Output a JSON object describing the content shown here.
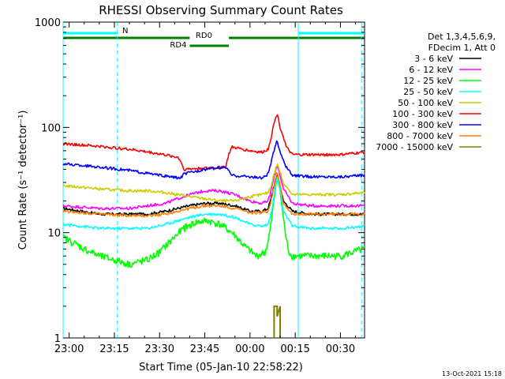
{
  "chart_data": {
    "type": "line",
    "title": "RHESSI Observing Summary Count Rates",
    "ylabel": "Count Rate (s⁻¹ detector⁻¹)",
    "xlabel": "Start Time (05-Jan-10 22:58:22)",
    "footer": "13-Oct-2021 15:18",
    "y_scale": "log",
    "ylim": [
      1,
      1000
    ],
    "xlim": [
      "22:58",
      "00:38"
    ],
    "x_ticks": [
      "23:00",
      "23:15",
      "23:30",
      "23:45",
      "00:00",
      "00:15",
      "00:30"
    ],
    "y_ticks": [
      "1",
      "10",
      "100",
      "1000"
    ],
    "legend": {
      "position": "right",
      "header": [
        "Det 1,3,4,5,6,9,",
        "FDecim 1, Att 0"
      ]
    },
    "series": [
      {
        "name": "3 - 6 keV",
        "color": "#000000",
        "x": [
          "22:58",
          "23:10",
          "23:20",
          "23:26",
          "23:32",
          "23:36",
          "23:40",
          "23:45",
          "23:50",
          "23:55",
          "00:00",
          "00:04",
          "00:06",
          "00:07",
          "00:08",
          "00:09",
          "00:11",
          "00:14",
          "00:20",
          "00:30",
          "00:38"
        ],
        "values": [
          17,
          15,
          15,
          15,
          16,
          17,
          18,
          19,
          19,
          18,
          16,
          16,
          17,
          21,
          28,
          36,
          20,
          16,
          15,
          15,
          15
        ]
      },
      {
        "name": "6 - 12 keV",
        "color": "#ff00ff",
        "x": [
          "22:58",
          "23:10",
          "23:20",
          "23:26",
          "23:32",
          "23:36",
          "23:40",
          "23:45",
          "23:50",
          "23:55",
          "00:00",
          "00:04",
          "00:06",
          "00:07",
          "00:08",
          "00:09",
          "00:11",
          "00:14",
          "00:20",
          "00:30",
          "00:38"
        ],
        "values": [
          18,
          17,
          17,
          18,
          19,
          21,
          23,
          25,
          25,
          23,
          20,
          19,
          20,
          25,
          34,
          44,
          26,
          19,
          18,
          18,
          18
        ]
      },
      {
        "name": "12 - 25 keV",
        "color": "#00ff00",
        "x": [
          "22:58",
          "23:05",
          "23:10",
          "23:20",
          "23:26",
          "23:30",
          "23:34",
          "23:38",
          "23:42",
          "23:46",
          "23:50",
          "23:54",
          "23:58",
          "00:02",
          "00:05",
          "00:06",
          "00:07",
          "00:08",
          "00:09",
          "00:10",
          "00:11",
          "00:12",
          "00:13",
          "00:14",
          "00:20",
          "00:30",
          "00:38"
        ],
        "values": [
          9,
          7,
          6,
          5,
          5.5,
          6.5,
          8.5,
          11,
          12.5,
          13,
          12,
          10,
          7.5,
          6,
          6.5,
          8,
          12,
          20,
          34,
          24,
          14,
          8.5,
          6.5,
          6,
          6,
          6,
          7
        ]
      },
      {
        "name": "25 - 50 keV",
        "color": "#00ffff",
        "x": [
          "22:58",
          "23:10",
          "23:20",
          "23:26",
          "23:32",
          "23:36",
          "23:40",
          "23:45",
          "23:50",
          "23:55",
          "00:00",
          "00:04",
          "00:06",
          "00:07",
          "00:08",
          "00:09",
          "00:11",
          "00:14",
          "00:20",
          "00:30",
          "00:38"
        ],
        "values": [
          12,
          11,
          11,
          11,
          12,
          13,
          14,
          15,
          15,
          14,
          12,
          11.5,
          12,
          15,
          22,
          34,
          16,
          11.5,
          11,
          11,
          11.5
        ]
      },
      {
        "name": "50 - 100 keV",
        "color": "#cccc00",
        "x": [
          "22:58",
          "23:10",
          "23:20",
          "23:26",
          "23:32",
          "23:36",
          "23:40",
          "23:45",
          "23:50",
          "23:55",
          "00:00",
          "00:04",
          "00:06",
          "00:07",
          "00:08",
          "00:09",
          "00:11",
          "00:14",
          "00:20",
          "00:30",
          "00:38"
        ],
        "values": [
          28,
          26,
          25,
          25,
          24,
          23,
          22,
          21,
          20,
          20,
          22,
          23,
          24,
          28,
          36,
          45,
          30,
          23,
          23,
          23,
          24
        ]
      },
      {
        "name": "100 - 300 keV",
        "color": "#ff0000",
        "x": [
          "22:58",
          "23:10",
          "23:20",
          "23:30",
          "23:36",
          "23:37",
          "23:38",
          "23:45",
          "23:52",
          "23:53",
          "23:54",
          "00:00",
          "00:04",
          "00:06",
          "00:07",
          "00:08",
          "00:09",
          "00:10",
          "00:12",
          "00:14",
          "00:20",
          "00:30",
          "00:38"
        ],
        "values": [
          70,
          66,
          62,
          56,
          52,
          48,
          40,
          41,
          42,
          56,
          65,
          60,
          58,
          62,
          80,
          110,
          135,
          100,
          65,
          55,
          55,
          55,
          58
        ]
      },
      {
        "name": "300 - 800 keV",
        "color": "#0000ff",
        "x": [
          "22:58",
          "23:10",
          "23:20",
          "23:30",
          "23:37",
          "23:38",
          "23:45",
          "23:52",
          "23:53",
          "23:54",
          "00:00",
          "00:04",
          "00:06",
          "00:07",
          "00:08",
          "00:09",
          "00:10",
          "00:12",
          "00:14",
          "00:20",
          "00:30",
          "00:38"
        ],
        "values": [
          45,
          42,
          39,
          35,
          33,
          36,
          40,
          42,
          38,
          35,
          34,
          33,
          36,
          46,
          60,
          75,
          58,
          42,
          35,
          34,
          34,
          35
        ]
      },
      {
        "name": "800 - 7000 keV",
        "color": "#ff8000",
        "x": [
          "22:58",
          "23:10",
          "23:20",
          "23:26",
          "23:32",
          "23:36",
          "23:40",
          "23:45",
          "23:50",
          "23:55",
          "00:00",
          "00:04",
          "00:06",
          "00:07",
          "00:08",
          "00:09",
          "00:11",
          "00:14",
          "00:20",
          "00:30",
          "00:38"
        ],
        "values": [
          16,
          15,
          14.5,
          14.5,
          15,
          16,
          17,
          18,
          18,
          17,
          15.5,
          15.5,
          16,
          20,
          27,
          38,
          19,
          15,
          15,
          15,
          15
        ]
      },
      {
        "name": "7000 - 15000 keV",
        "color": "#808000",
        "x": [
          "00:08",
          "00:08",
          "00:09",
          "00:09",
          "00:10",
          "00:10"
        ],
        "values": [
          1,
          2,
          2,
          1.6,
          2,
          1
        ],
        "style": "spikes"
      }
    ],
    "state_bars": [
      {
        "label": "N",
        "color": "#00ffff",
        "segments": [
          [
            "22:58",
            "23:16"
          ],
          [
            "00:16",
            "00:38"
          ]
        ]
      },
      {
        "label": "RD0",
        "color": "#008000",
        "segments": [
          [
            "22:58",
            "23:40"
          ],
          [
            "23:53",
            "00:38"
          ]
        ]
      },
      {
        "label": "RD4",
        "color": "#008000",
        "segments": [
          [
            "23:40",
            "23:53"
          ]
        ]
      }
    ],
    "vlines_solid": [
      "22:58",
      "00:16"
    ],
    "vlines_dashed": [
      "23:16",
      "00:37"
    ]
  }
}
